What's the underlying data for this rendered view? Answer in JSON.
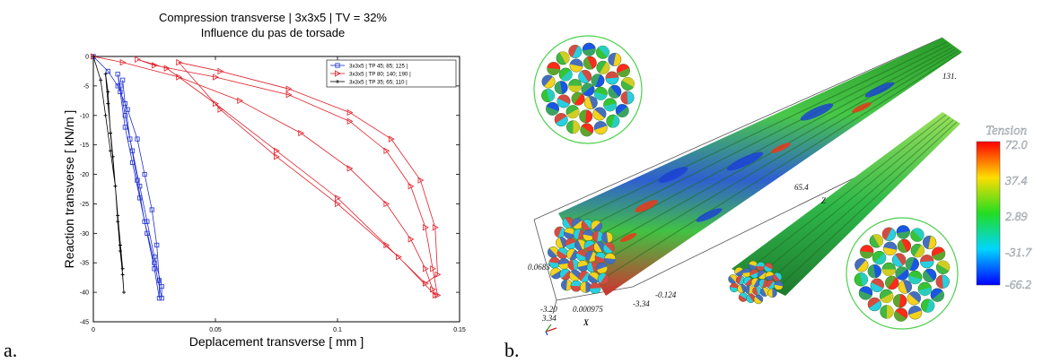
{
  "panel_labels": {
    "left": "a.",
    "right": "b."
  },
  "chart_data": {
    "type": "line",
    "title": "Compression transverse | 3x3x5 | TV = 32%",
    "subtitle": "Influence du pas de torsade",
    "xlabel": "Deplacement transverse [ mm ]",
    "ylabel": "Reaction transverse [ kN/m ]",
    "xlim": [
      0,
      0.15
    ],
    "ylim": [
      -45,
      0
    ],
    "xticks": [
      "0",
      "0.05",
      "0.1",
      "0.15"
    ],
    "yticks": [
      "0",
      "-5",
      "-10",
      "-15",
      "-20",
      "-25",
      "-30",
      "-35",
      "-40",
      "-45"
    ],
    "grid": false,
    "legend_position": "top-right",
    "series": [
      {
        "name": "3x3x5 | TP 45;  85; 125 |",
        "color": "#1f2fd0",
        "marker": "square",
        "x": [
          0.0,
          0.006,
          0.01,
          0.014,
          0.018,
          0.021,
          0.024,
          0.026,
          0.027,
          0.027,
          0.025,
          0.022,
          0.019,
          0.016,
          0.013,
          0.011,
          0.01,
          0.011,
          0.013,
          0.016,
          0.019,
          0.022,
          0.025,
          0.028,
          0.028,
          0.025,
          0.021,
          0.018,
          0.015,
          0.013,
          0.012
        ],
        "y": [
          0.0,
          -2.5,
          -5.0,
          -9.0,
          -14.0,
          -20.0,
          -26.0,
          -32.0,
          -38.0,
          -41.0,
          -36.0,
          -30.0,
          -24.0,
          -18.0,
          -12.0,
          -6.0,
          -3.0,
          -5.0,
          -10.0,
          -16.0,
          -22.0,
          -28.0,
          -34.0,
          -39.0,
          -41.0,
          -35.0,
          -28.0,
          -21.0,
          -14.0,
          -8.0,
          -4.0
        ]
      },
      {
        "name": "3x3x5 | TP 80; 140; 190 |",
        "color": "#e0202a",
        "marker": "triangle",
        "x": [
          0.0,
          0.012,
          0.035,
          0.06,
          0.085,
          0.105,
          0.12,
          0.13,
          0.136,
          0.139,
          0.14,
          0.125,
          0.1,
          0.075,
          0.052,
          0.035,
          0.052,
          0.08,
          0.105,
          0.122,
          0.134,
          0.14,
          0.141,
          0.136,
          0.12,
          0.1,
          0.075,
          0.05,
          0.03,
          0.018,
          0.025,
          0.05,
          0.08,
          0.105,
          0.12,
          0.13,
          0.136,
          0.139,
          0.141
        ],
        "y": [
          0.0,
          -1.0,
          -3.5,
          -7.5,
          -13.0,
          -19.0,
          -25.0,
          -31.0,
          -36.0,
          -39.5,
          -40.5,
          -34.0,
          -25.0,
          -17.0,
          -9.0,
          -1.0,
          -2.5,
          -5.5,
          -9.5,
          -14.0,
          -21.0,
          -29.0,
          -37.0,
          -38.5,
          -32.0,
          -24.0,
          -16.0,
          -8.0,
          -2.0,
          -0.5,
          -1.5,
          -3.5,
          -6.5,
          -11.0,
          -16.0,
          -22.0,
          -29.0,
          -36.0,
          -40.5
        ]
      },
      {
        "name": "3x3x5 | TP 35;  65; 110 |",
        "color": "#000000",
        "marker": "plus",
        "x": [
          0.0,
          0.003,
          0.005,
          0.007,
          0.009,
          0.01,
          0.011,
          0.012,
          0.0125,
          0.011,
          0.009,
          0.007,
          0.006,
          0.005,
          0.006,
          0.008,
          0.01,
          0.012
        ],
        "y": [
          0.0,
          -4.0,
          -10.0,
          -16.0,
          -22.0,
          -28.0,
          -33.0,
          -37.0,
          -40.0,
          -32.0,
          -22.0,
          -13.0,
          -6.0,
          -3.0,
          -8.0,
          -17.0,
          -27.0,
          -36.0
        ]
      }
    ]
  },
  "viz3d": {
    "colorbar_title": "Tension",
    "colorbar_ticks": [
      "72.0",
      "37.4",
      "2.89",
      "-31.7",
      "-66.2"
    ],
    "axis_labels": [
      "131.",
      "65.4",
      "Z",
      "0.0683",
      "-3.20",
      "3.34",
      "X",
      "0.000975",
      "-3.34",
      "-0.124"
    ]
  }
}
